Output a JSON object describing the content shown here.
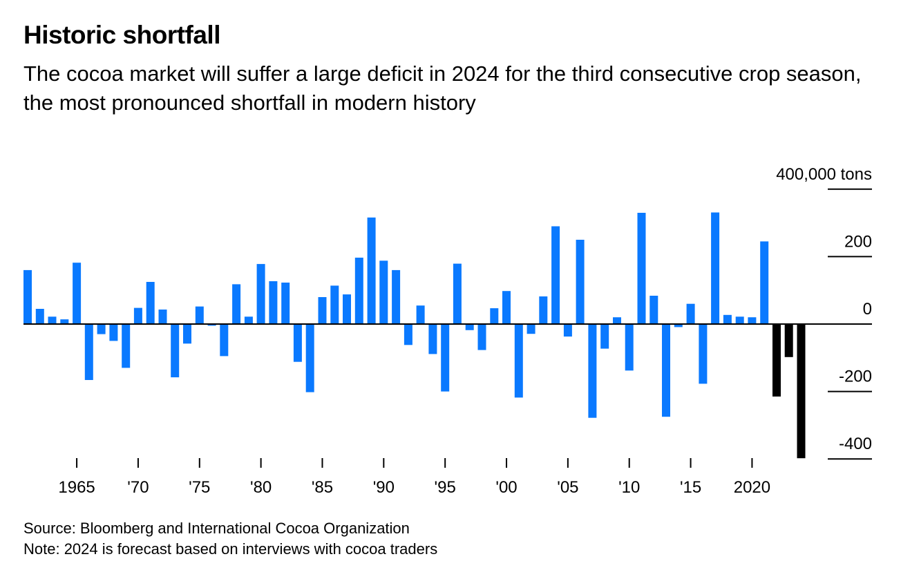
{
  "title": "Historic shortfall",
  "subtitle": "The cocoa market will suffer a large deficit in 2024 for the third consecutive crop season, the most pronounced shortfall in modern history",
  "source": "Source: Bloomberg and International Cocoa Organization",
  "note": "Note: 2024 is forecast based on interviews with cocoa traders",
  "colors": {
    "actual": "#0a79ff",
    "forecast": "#000000",
    "axis": "#000000"
  },
  "chart_data": {
    "type": "bar",
    "ylabel": "",
    "unit": "tons",
    "ylim": [
      -420000,
      400000
    ],
    "y_ticks": [
      400000,
      200000,
      0,
      -200000,
      -400000
    ],
    "y_tick_labels": [
      "400,000 tons",
      "200",
      "0",
      "-200",
      "-400"
    ],
    "x_ticks": [
      1965,
      1970,
      1975,
      1980,
      1985,
      1990,
      1995,
      2000,
      2005,
      2010,
      2015,
      2020
    ],
    "x_tick_labels": [
      "1965",
      "'70",
      "'75",
      "'80",
      "'85",
      "'90",
      "'95",
      "'00",
      "'05",
      "'10",
      "'15",
      "2020"
    ],
    "grid": false,
    "forecast_from": 2022,
    "categories": [
      1961,
      1962,
      1963,
      1964,
      1965,
      1966,
      1967,
      1968,
      1969,
      1970,
      1971,
      1972,
      1973,
      1974,
      1975,
      1976,
      1977,
      1978,
      1979,
      1980,
      1981,
      1982,
      1983,
      1984,
      1985,
      1986,
      1987,
      1988,
      1989,
      1990,
      1991,
      1992,
      1993,
      1994,
      1995,
      1996,
      1997,
      1998,
      1999,
      2000,
      2001,
      2002,
      2003,
      2004,
      2005,
      2006,
      2007,
      2008,
      2009,
      2010,
      2011,
      2012,
      2013,
      2014,
      2015,
      2016,
      2017,
      2018,
      2019,
      2020,
      2021,
      2022,
      2023,
      2024
    ],
    "values": [
      160000,
      45000,
      22000,
      14000,
      182000,
      -166000,
      -30000,
      -50000,
      -130000,
      48000,
      125000,
      43000,
      -158000,
      -58000,
      52000,
      -5000,
      -95000,
      118000,
      22000,
      178000,
      127000,
      123000,
      -112000,
      -202000,
      80000,
      114000,
      88000,
      197000,
      316000,
      188000,
      160000,
      -62000,
      55000,
      -89000,
      -200000,
      179000,
      -18000,
      -77000,
      47000,
      98000,
      -218000,
      -29000,
      82000,
      290000,
      -37000,
      250000,
      -278000,
      -73000,
      20000,
      -138000,
      330000,
      84000,
      -275000,
      -9000,
      60000,
      -177000,
      331000,
      27000,
      22000,
      20000,
      245000,
      -215000,
      -98000,
      -398000
    ]
  }
}
